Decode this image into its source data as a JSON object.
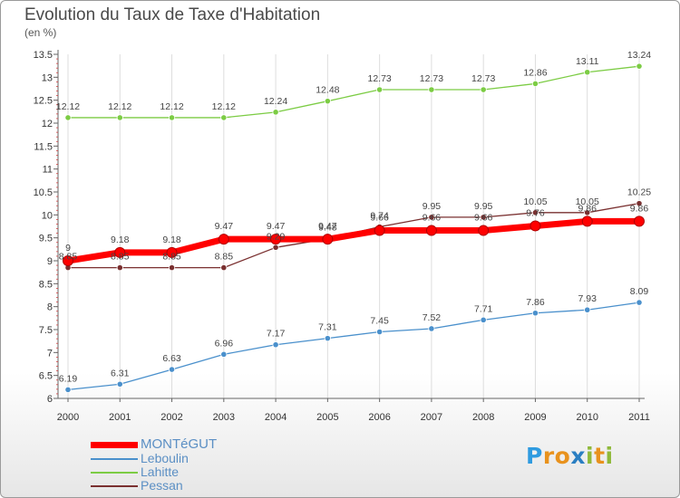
{
  "title": "Evolution du Taux de Taxe d'Habitation",
  "unit": "(en %)",
  "logo": [
    "P",
    "r",
    "o",
    "x",
    "i",
    "t",
    "i"
  ],
  "chart_data": {
    "type": "line",
    "x": [
      "2000",
      "2001",
      "2002",
      "2003",
      "2004",
      "2005",
      "2006",
      "2007",
      "2008",
      "2009",
      "2010",
      "2011"
    ],
    "ylim": [
      6,
      13.5
    ],
    "yticks": [
      "6",
      "6.5",
      "7",
      "7.5",
      "8",
      "8.5",
      "9",
      "9.5",
      "10",
      "10.5",
      "11",
      "11.5",
      "12",
      "12.5",
      "13",
      "13.5"
    ],
    "grid": "vertical",
    "legend_position": "bottom-left",
    "series": [
      {
        "name": "MONTéGUT",
        "color": "#ff0000",
        "bold": true,
        "values": [
          9,
          9.18,
          9.18,
          9.47,
          9.47,
          9.47,
          9.66,
          9.66,
          9.66,
          9.76,
          9.86,
          9.86
        ],
        "labels": [
          "9",
          "9.18",
          "9.18",
          "9.47",
          "9.47",
          "9.47",
          "9.66",
          "9.66",
          "9.66",
          "9.76",
          "9.86",
          "9.86"
        ]
      },
      {
        "name": "Leboulin",
        "color": "#4a90cc",
        "values": [
          6.19,
          6.31,
          6.63,
          6.96,
          7.17,
          7.31,
          7.45,
          7.52,
          7.71,
          7.86,
          7.93,
          8.09
        ],
        "labels": [
          "6.19",
          "6.31",
          "6.63",
          "6.96",
          "7.17",
          "7.31",
          "7.45",
          "7.52",
          "7.71",
          "7.86",
          "7.93",
          "8.09"
        ]
      },
      {
        "name": "Lahitte",
        "color": "#7ccc44",
        "values": [
          12.12,
          12.12,
          12.12,
          12.12,
          12.24,
          12.48,
          12.73,
          12.73,
          12.73,
          12.86,
          13.11,
          13.24
        ],
        "labels": [
          "12.12",
          "12.12",
          "12.12",
          "12.12",
          "12.24",
          "12.48",
          "12.73",
          "12.73",
          "12.73",
          "12.86",
          "13.11",
          "13.24"
        ]
      },
      {
        "name": "Pessan",
        "color": "#7a3030",
        "values": [
          8.85,
          8.85,
          8.85,
          8.85,
          9.29,
          9.48,
          9.74,
          9.95,
          9.95,
          10.05,
          10.05,
          10.25
        ],
        "labels": [
          "8.85",
          "8.85",
          "8.85",
          "8.85",
          "9.29",
          "9.48",
          "9.74",
          "9.95",
          "9.95",
          "10.05",
          "10.05",
          "10.25"
        ]
      }
    ]
  }
}
